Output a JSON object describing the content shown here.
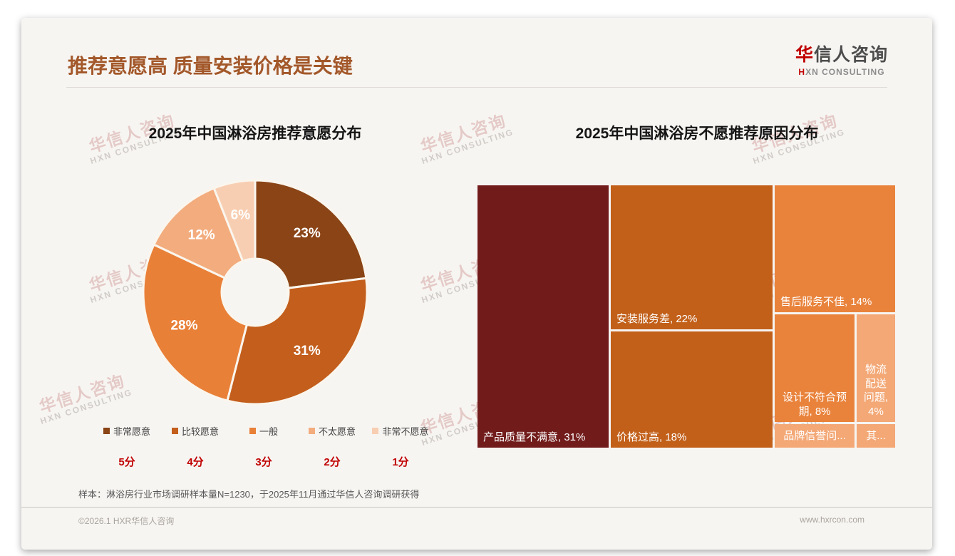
{
  "page": {
    "title": "推荐意愿高 质量安装价格是关键"
  },
  "logo": {
    "cn_accent": "华",
    "cn_rest": "信人咨询",
    "en_accent": "H",
    "en_rest": "XN CONSULTING"
  },
  "watermark": {
    "line1": "华信人咨询",
    "line2": "HXN CONSULTING"
  },
  "chart_data": [
    {
      "type": "pie",
      "subtype": "donut",
      "title": "2025年中国淋浴房推荐意愿分布",
      "categories": [
        "非常愿意",
        "比较愿意",
        "一般",
        "不太愿意",
        "非常不愿意"
      ],
      "scores": [
        "5分",
        "4分",
        "3分",
        "2分",
        "1分"
      ],
      "values": [
        23,
        31,
        28,
        12,
        6
      ],
      "labels": [
        "23%",
        "31%",
        "28%",
        "12%",
        "6%"
      ],
      "colors": [
        "#8A4416",
        "#C35E1C",
        "#E98038",
        "#F3AC7D",
        "#F8CEB2"
      ],
      "legend_position": "bottom",
      "start_angle_deg": 0,
      "direction": "clockwise"
    },
    {
      "type": "treemap",
      "title": "2025年中国淋浴房不愿推荐原因分布",
      "cells": [
        {
          "category": "产品质量不满意",
          "value": 31,
          "label": "产品质量不满意, 31%",
          "color": "#721B1B",
          "align": "left"
        },
        {
          "category": "安装服务差",
          "value": 22,
          "label": "安装服务差, 22%",
          "color": "#C2601A",
          "align": "left"
        },
        {
          "category": "价格过高",
          "value": 18,
          "label": "价格过高, 18%",
          "color": "#C2601A",
          "align": "left"
        },
        {
          "category": "售后服务不佳",
          "value": 14,
          "label": "售后服务不佳, 14%",
          "color": "#E9833C",
          "align": "left"
        },
        {
          "category": "设计不符合预期",
          "value": 8,
          "label": "设计不符合预\n期, 8%",
          "color": "#E9833C",
          "align": "bottom-center"
        },
        {
          "category": "物流配送问题",
          "value": 4,
          "label": "物流\n配送\n问题,\n4%",
          "color": "#F3A876",
          "align": "bottom-center"
        },
        {
          "category": "品牌信誉问...",
          "value": null,
          "label": "品牌信誉问...",
          "color": "#F3A876",
          "align": "center"
        },
        {
          "category": "其...",
          "value": null,
          "label": "其...",
          "color": "#F3A876",
          "align": "center"
        }
      ]
    }
  ],
  "footnote": "样本：淋浴房行业市场调研样本量N=1230，于2025年11月通过华信人咨询调研获得",
  "footer": {
    "left": "©2026.1 HXR华信人咨询",
    "right": "www.hxrcon.com"
  }
}
